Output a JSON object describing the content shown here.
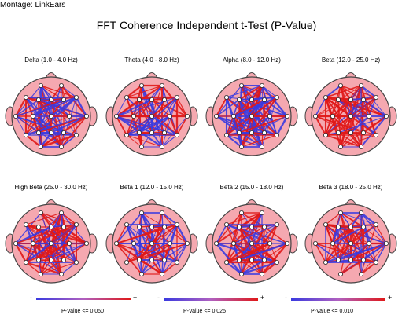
{
  "header": {
    "montage": "Montage:  LinkEars",
    "title": "FFT Coherence Independent t-Test  (P-Value)"
  },
  "maps": [
    {
      "label": "Delta (1.0 - 4.0 Hz)",
      "red_frac": 0.62
    },
    {
      "label": "Theta (4.0 - 8.0 Hz)",
      "red_frac": 0.55
    },
    {
      "label": "Alpha (8.0 - 12.0 Hz)",
      "red_frac": 0.4
    },
    {
      "label": "Beta (12.0 - 25.0 Hz)",
      "red_frac": 0.85
    },
    {
      "label": "High Beta (25.0 - 30.0 Hz)",
      "red_frac": 0.6
    },
    {
      "label": "Beta 1 (12.0 - 15.0 Hz)",
      "red_frac": 0.45
    },
    {
      "label": "Beta 2 (15.0 - 18.0 Hz)",
      "red_frac": 0.6
    },
    {
      "label": "Beta 3 (18.0 - 25.0 Hz)",
      "red_frac": 0.55
    }
  ],
  "legend": [
    {
      "text": "P-Value <= 0.050",
      "minus": "-",
      "plus": "+"
    },
    {
      "text": "P-Value <= 0.025",
      "minus": "-",
      "plus": "+"
    },
    {
      "text": "P-Value <= 0.010",
      "minus": "-",
      "plus": "+"
    }
  ],
  "colors": {
    "head_fill": "#f5a8b0",
    "head_outline": "#444444",
    "red_line": "#e01818",
    "blue_line": "#3a3ae0",
    "electrode": "#ffffff"
  }
}
